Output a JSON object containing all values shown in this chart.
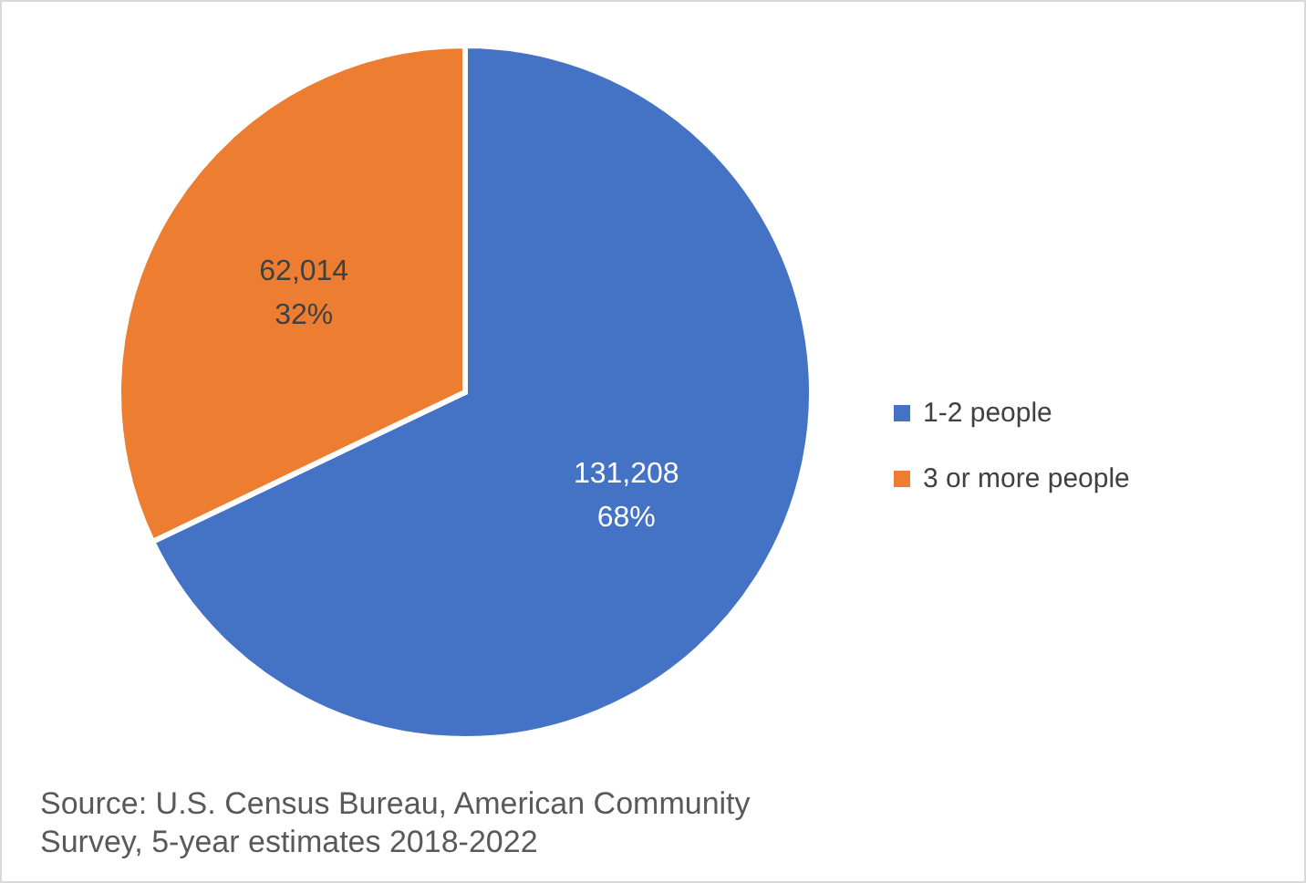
{
  "chart_data": {
    "type": "pie",
    "categories": [
      "1-2 people",
      "3 or more people"
    ],
    "values": [
      131208,
      62014
    ],
    "colors": [
      "#4472c4",
      "#ed7d31"
    ],
    "value_labels": [
      "131,208\n68%",
      "62,014\n32%"
    ],
    "legend": "right",
    "annotations": [
      "Source: U.S. Census Bureau, American Community\nSurvey, 5-year estimates 2018-2022"
    ]
  }
}
